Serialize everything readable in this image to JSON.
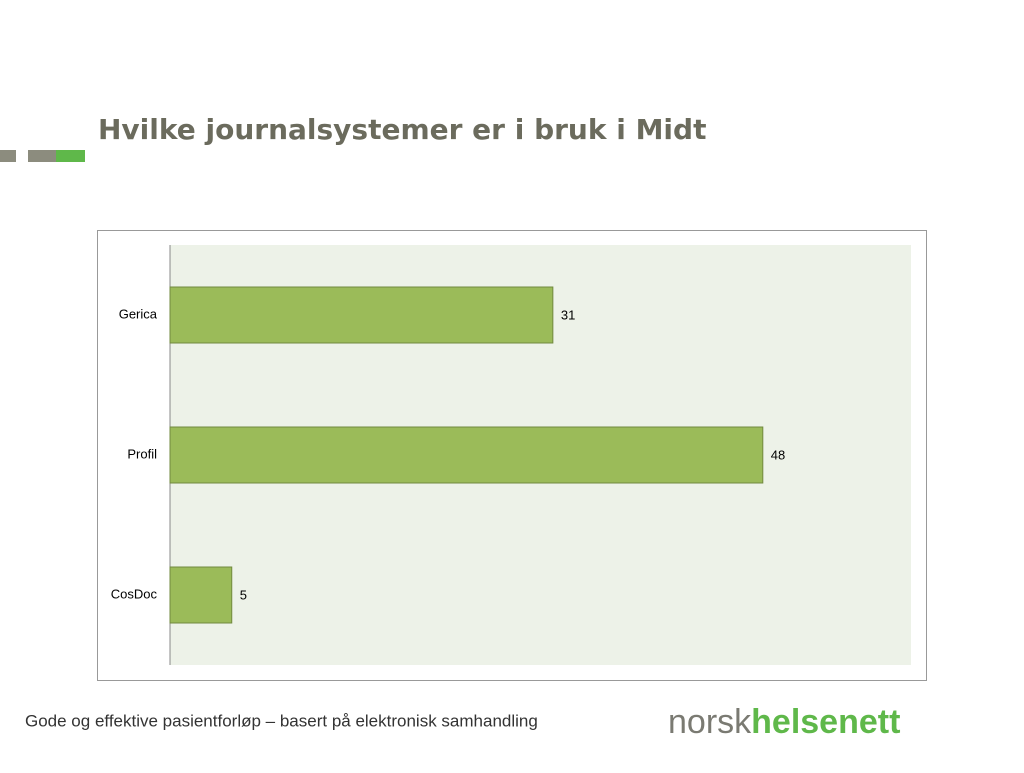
{
  "chart_data": {
    "type": "bar",
    "orientation": "horizontal",
    "title": "Hvilke journalsystemer er i bruk i Midt",
    "categories": [
      "Gerica",
      "Profil",
      "CosDoc"
    ],
    "values": [
      31,
      48,
      5
    ],
    "color": "#9bbb59",
    "xlim": [
      0,
      60
    ]
  },
  "footer": "Gode og effektive pasientforløp – basert på elektronisk samhandling",
  "logo": {
    "part1": "norsk",
    "part2": "helsenett"
  }
}
